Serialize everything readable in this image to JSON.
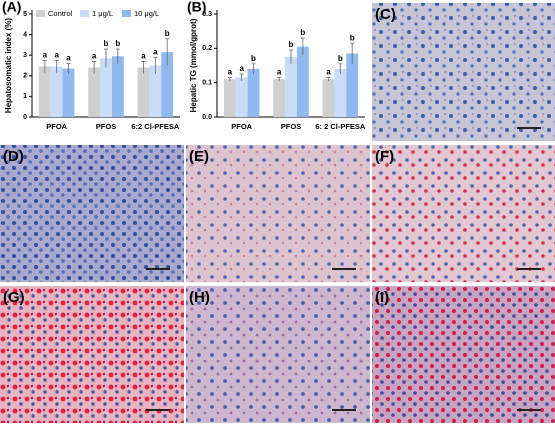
{
  "chart_data": [
    {
      "type": "bar",
      "label": "(A)",
      "ylabel": "Hepatosomatic index (%)",
      "categories": [
        "PFOA",
        "PFOS",
        "6:2 Cl-PFESA"
      ],
      "series": [
        {
          "name": "Control",
          "color": "#cfcfcf",
          "values": [
            2.45,
            2.4,
            2.4
          ],
          "errors": [
            0.3,
            0.3,
            0.3
          ],
          "letters": [
            "a",
            "a",
            "a"
          ]
        },
        {
          "name": "1 μg/L",
          "color": "#c9dcf6",
          "values": [
            2.45,
            2.85,
            2.5
          ],
          "errors": [
            0.3,
            0.45,
            0.4
          ],
          "letters": [
            "a",
            "b",
            "a"
          ]
        },
        {
          "name": "10 μg/L",
          "color": "#8fb9ef",
          "values": [
            2.35,
            2.95,
            3.15
          ],
          "errors": [
            0.25,
            0.35,
            0.65
          ],
          "letters": [
            "a",
            "b",
            "b"
          ]
        }
      ],
      "ylim": [
        0,
        5
      ],
      "yticks": [
        0,
        1,
        2,
        3,
        4,
        5
      ],
      "legend": "upper right"
    },
    {
      "type": "bar",
      "label": "(B)",
      "ylabel": "Hepatic TG (mmol/gprot)",
      "categories": [
        "PFOA",
        "PFOS",
        "6: 2 Cl-PFESA"
      ],
      "series": [
        {
          "color": "#cfcfcf",
          "values": [
            0.11,
            0.11,
            0.11
          ],
          "errors": [
            0.005,
            0.005,
            0.005
          ],
          "letters": [
            "a",
            "a",
            "a"
          ]
        },
        {
          "color": "#c9dcf6",
          "values": [
            0.115,
            0.175,
            0.14
          ],
          "errors": [
            0.01,
            0.02,
            0.015
          ],
          "letters": [
            "a",
            "b",
            "b"
          ]
        },
        {
          "color": "#8fb9ef",
          "values": [
            0.14,
            0.205,
            0.185
          ],
          "errors": [
            0.015,
            0.025,
            0.03
          ],
          "letters": [
            "b",
            "b",
            "b"
          ]
        }
      ],
      "ylim": [
        0,
        0.3
      ],
      "yticks": [
        {
          "value": 0,
          "label": "0.0"
        },
        0.1,
        0.2,
        0.3
      ]
    }
  ],
  "panels": [
    {
      "label": "(C)"
    },
    {
      "label": "(D)"
    },
    {
      "label": "(E)"
    },
    {
      "label": "(F)"
    },
    {
      "label": "(G)"
    },
    {
      "label": "(H)"
    },
    {
      "label": "(I)"
    }
  ]
}
